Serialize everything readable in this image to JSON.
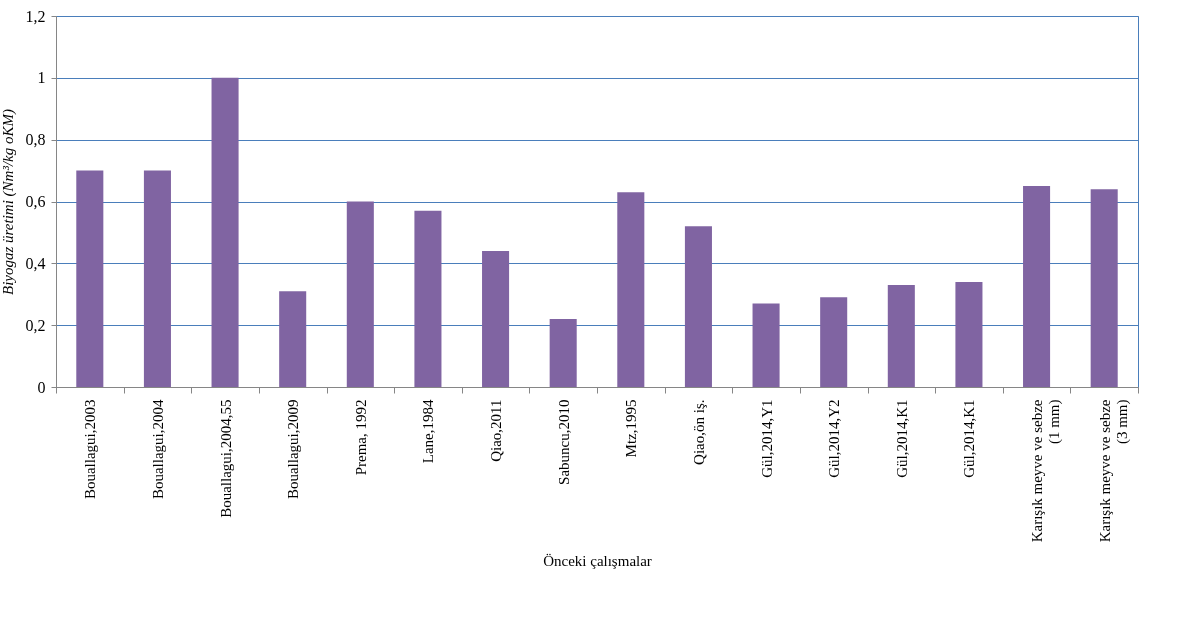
{
  "chart_data": {
    "type": "bar",
    "xlabel": "Önceki çalışmalar",
    "ylabel": "Biyogaz üretimi (Nm³/kg oKM)",
    "categories": [
      "Bouallagui,2003",
      "Bouallagui,2004",
      "Bouallagui,2004,55",
      "Bouallagui,2009",
      "Prema, 1992",
      "Lane,1984",
      "Qiao,2011",
      "Sabuncu,2010",
      "Mtz,1995",
      "Qiao,ön iş.",
      "Gül,2014,Y1",
      "Gül,2014,Y2",
      "Gül,2014,K1",
      "Gül,2014,K1",
      "Karışık meyve ve sebze\n(1 mm)",
      "Karışık meyve ve sebze\n(3 mm)"
    ],
    "values": [
      0.7,
      0.7,
      1.0,
      0.31,
      0.6,
      0.57,
      0.44,
      0.22,
      0.63,
      0.52,
      0.27,
      0.29,
      0.33,
      0.34,
      0.65,
      0.64
    ],
    "color": "#8064a2",
    "ylim": [
      0,
      1.2
    ],
    "yticks": [
      0,
      {
        "value": 0.2,
        "label": "0,2"
      },
      {
        "value": 0.4,
        "label": "0,4"
      },
      {
        "value": 0.6,
        "label": "0,6"
      },
      {
        "value": 0.8,
        "label": "0,8"
      },
      1,
      {
        "value": 1.2,
        "label": "1,2"
      }
    ],
    "grid": "y"
  }
}
